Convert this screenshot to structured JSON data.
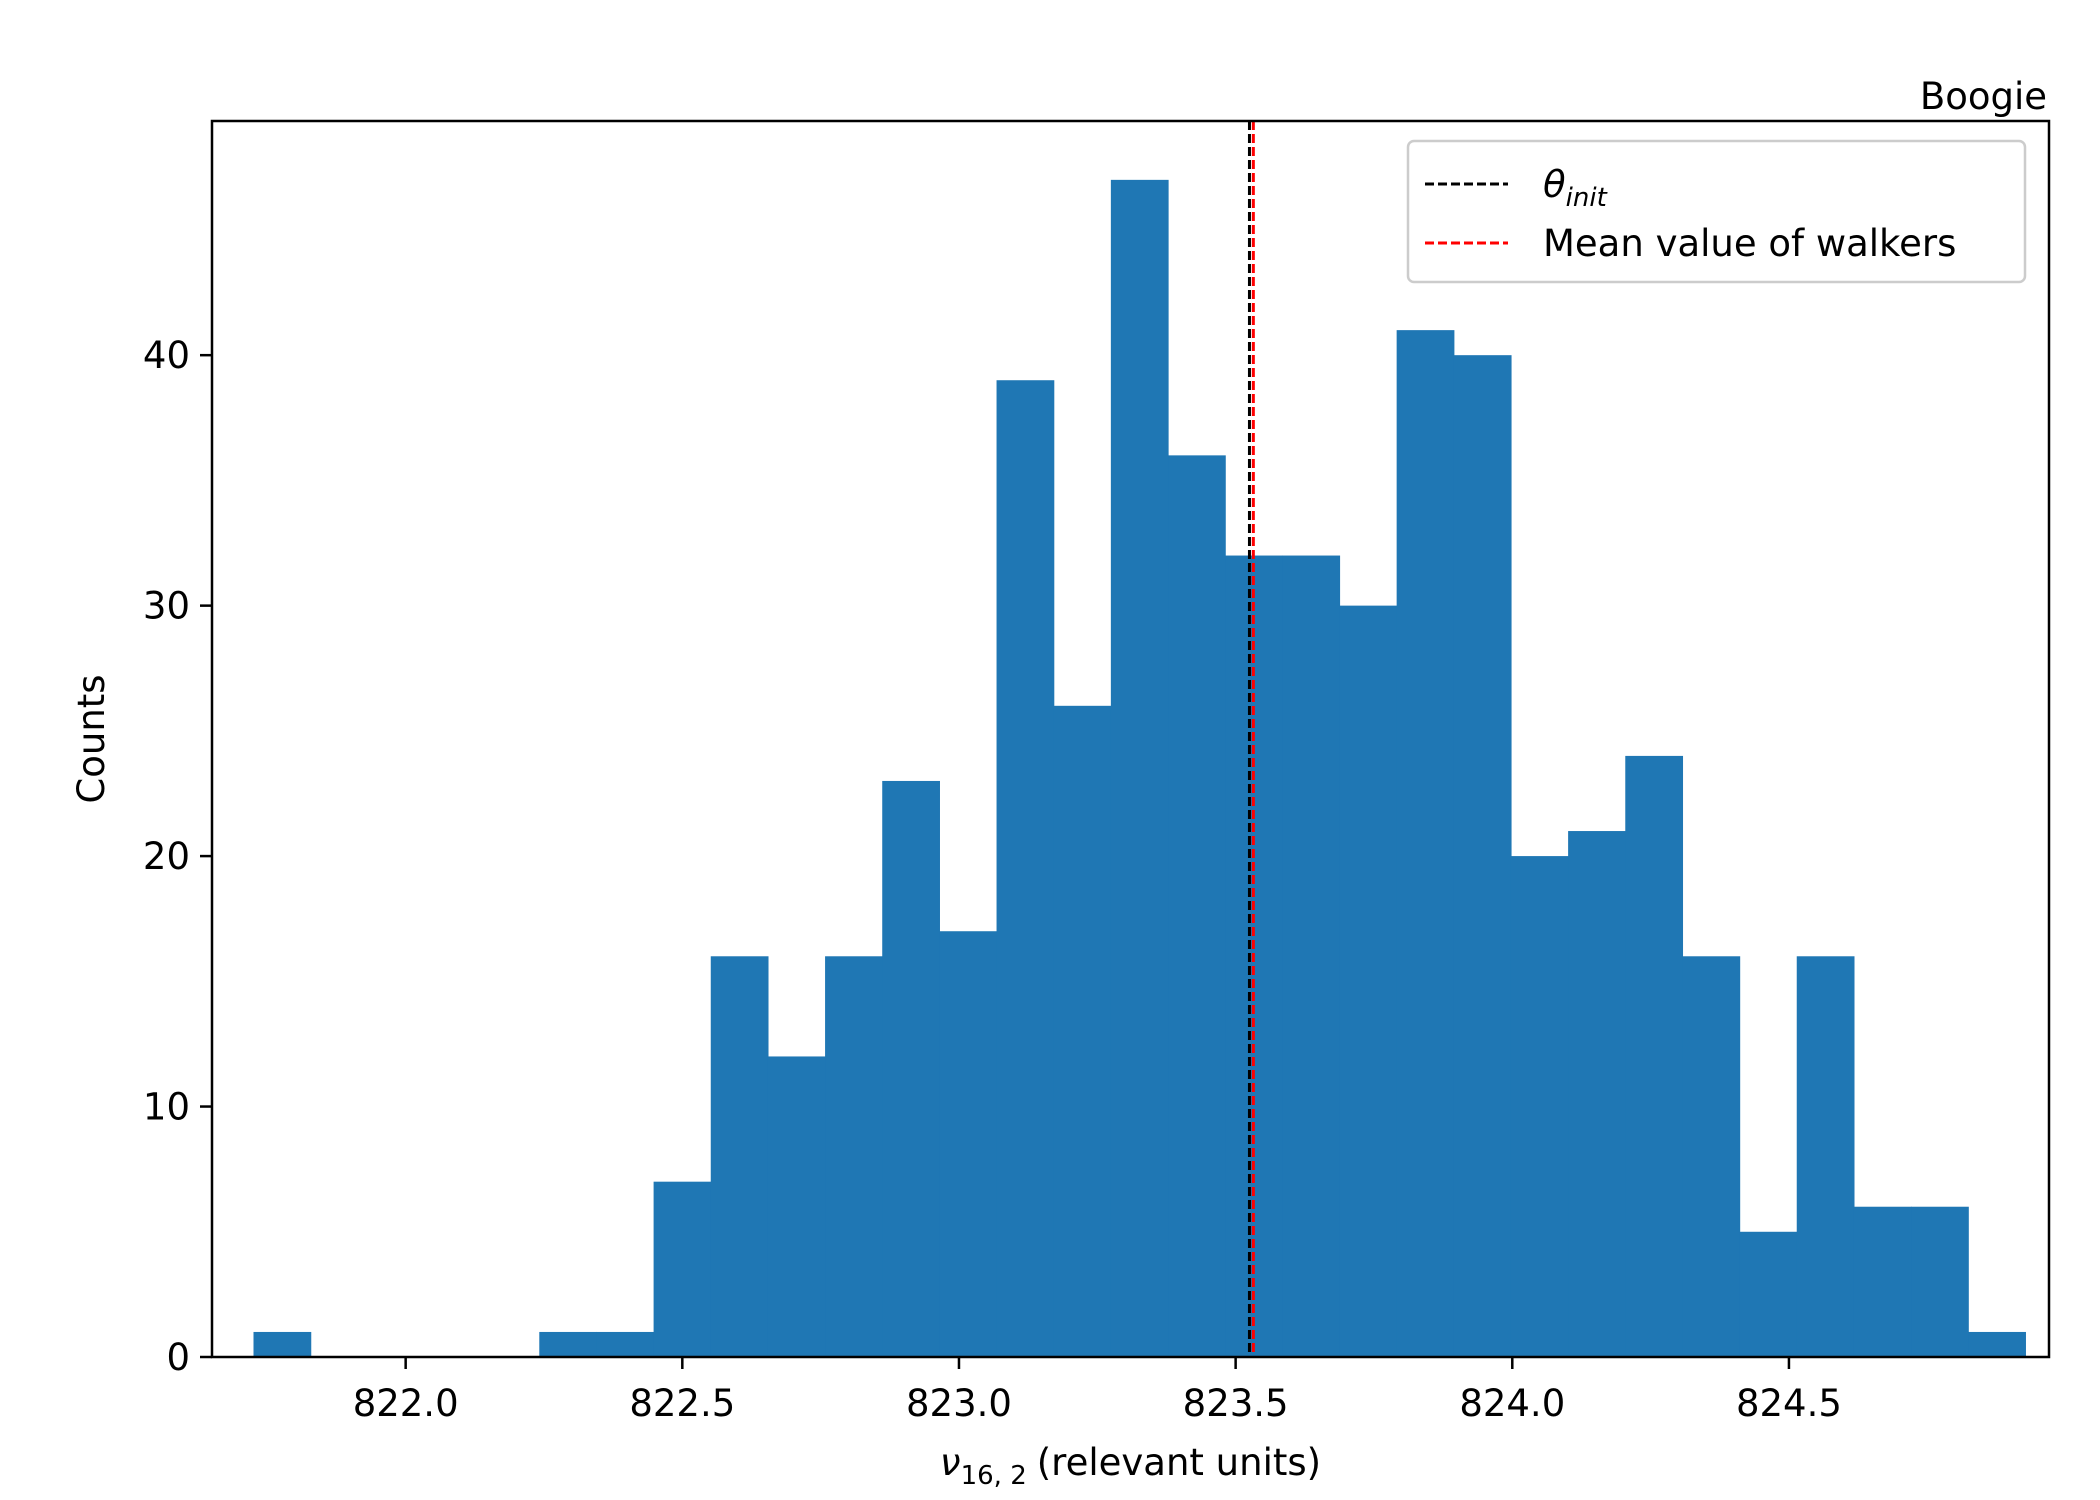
{
  "chart_data": {
    "type": "bar",
    "title": "Boogie",
    "xlabel": {
      "symbol": "ν",
      "subscript": "16, 2",
      "text": "(relevant units)"
    },
    "ylabel": "Counts",
    "xlim": [
      821.65,
      824.97
    ],
    "ylim": [
      0,
      49.35
    ],
    "x_ticks": [
      822.0,
      822.5,
      823.0,
      823.5,
      824.0,
      824.5
    ],
    "x_tick_labels": [
      "822.0",
      "822.5",
      "823.0",
      "823.5",
      "824.0",
      "824.5"
    ],
    "y_ticks": [
      0,
      10,
      20,
      30,
      40
    ],
    "y_tick_labels": [
      "0",
      "10",
      "20",
      "30",
      "40"
    ],
    "bin_start": 821.725,
    "bin_width": 0.1033,
    "values": [
      1,
      0,
      0,
      0,
      0,
      1,
      1,
      7,
      16,
      12,
      16,
      23,
      17,
      39,
      26,
      47,
      36,
      32,
      32,
      30,
      41,
      40,
      20,
      21,
      24,
      16,
      5,
      16,
      6,
      6,
      1
    ],
    "bar_color": "#1f77b4",
    "vlines": [
      {
        "x": 823.525,
        "color": "#000000",
        "style": "dashed",
        "label_symbol": "θ",
        "label_subscript": "init"
      },
      {
        "x": 823.532,
        "color": "#ff0000",
        "style": "dashed",
        "label": "Mean value of walkers"
      }
    ],
    "legend": {
      "position": "top-right"
    },
    "grid": false
  }
}
